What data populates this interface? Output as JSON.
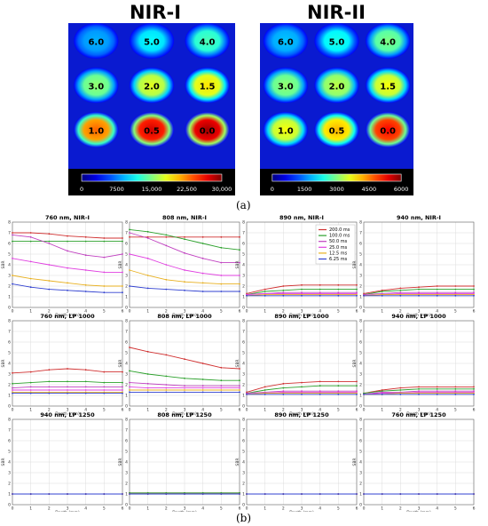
{
  "figure": {
    "caption_a": "(a)",
    "caption_b": "(b)"
  },
  "chart_data": [
    {
      "type": "heatmap",
      "title": "NIR-I",
      "cells": [
        [
          "6.0",
          "5.0",
          "4.0"
        ],
        [
          "3.0",
          "2.0",
          "1.5"
        ],
        [
          "1.0",
          "0.5",
          "0.0"
        ]
      ],
      "intensity": [
        [
          0.3,
          0.38,
          0.45
        ],
        [
          0.52,
          0.6,
          0.65
        ],
        [
          0.78,
          0.92,
          0.97
        ]
      ],
      "colorbar_ticks": [
        "0",
        "7500",
        "15,000",
        "22,500",
        "30,000"
      ],
      "colorbar_range": [
        0,
        30000
      ]
    },
    {
      "type": "heatmap",
      "title": "NIR-II",
      "cells": [
        [
          "6.0",
          "5.0",
          "4.0"
        ],
        [
          "3.0",
          "2.0",
          "1.5"
        ],
        [
          "1.0",
          "0.5",
          "0.0"
        ]
      ],
      "intensity": [
        [
          0.32,
          0.4,
          0.5
        ],
        [
          0.52,
          0.56,
          0.62
        ],
        [
          0.62,
          0.7,
          0.88
        ]
      ],
      "colorbar_ticks": [
        "0",
        "1500",
        "3000",
        "4500",
        "6000"
      ],
      "colorbar_range": [
        0,
        6000
      ]
    },
    {
      "type": "line",
      "legend": {
        "placement": "top-right",
        "entries": [
          "200.0 ms",
          "100.0 ms",
          "50.0 ms",
          "25.0 ms",
          "12.5 ms",
          "6.25 ms"
        ]
      },
      "series_colors": [
        "#d03030",
        "#2ca02c",
        "#c040c0",
        "#e040e0",
        "#e8b020",
        "#3040d0"
      ],
      "xlabel": "Depth (mm)",
      "ylabel": "SBR",
      "xlim": [
        0,
        6
      ],
      "ylim": [
        0,
        8
      ],
      "xticks": [
        "0",
        "1",
        "2",
        "3",
        "4",
        "5",
        "6"
      ],
      "yticks": [
        "0",
        "1",
        "2",
        "3",
        "4",
        "5",
        "6",
        "7",
        "8"
      ],
      "grid": true,
      "x": [
        0,
        1,
        2,
        3,
        4,
        5,
        6
      ],
      "panels": [
        {
          "title": "760 nm, NIR-I",
          "series": [
            [
              7.0,
              7.0,
              6.9,
              6.7,
              6.6,
              6.5,
              6.5
            ],
            [
              6.2,
              6.2,
              6.2,
              6.2,
              6.2,
              6.2,
              6.2
            ],
            [
              6.8,
              6.6,
              6.0,
              5.3,
              4.9,
              4.7,
              5.0
            ],
            [
              4.6,
              4.3,
              4.0,
              3.7,
              3.5,
              3.3,
              3.3
            ],
            [
              3.0,
              2.7,
              2.5,
              2.3,
              2.1,
              2.0,
              2.0
            ],
            [
              2.2,
              1.9,
              1.7,
              1.6,
              1.5,
              1.4,
              1.4
            ]
          ]
        },
        {
          "title": "808 nm, NIR-I",
          "series": [
            [
              6.6,
              6.6,
              6.6,
              6.6,
              6.6,
              6.6,
              6.6
            ],
            [
              7.3,
              7.1,
              6.8,
              6.4,
              6.0,
              5.6,
              5.4
            ],
            [
              7.0,
              6.5,
              5.8,
              5.1,
              4.6,
              4.2,
              4.2
            ],
            [
              5.0,
              4.6,
              4.0,
              3.5,
              3.2,
              3.0,
              3.0
            ],
            [
              3.5,
              3.0,
              2.6,
              2.4,
              2.3,
              2.2,
              2.2
            ],
            [
              2.0,
              1.8,
              1.7,
              1.6,
              1.5,
              1.5,
              1.5
            ]
          ]
        },
        {
          "title": "890 nm, NIR-I",
          "series": [
            [
              1.3,
              1.7,
              2.0,
              2.1,
              2.1,
              2.1,
              2.1
            ],
            [
              1.2,
              1.5,
              1.6,
              1.7,
              1.7,
              1.7,
              1.7
            ],
            [
              1.2,
              1.3,
              1.4,
              1.4,
              1.4,
              1.4,
              1.4
            ],
            [
              1.2,
              1.3,
              1.3,
              1.3,
              1.3,
              1.3,
              1.3
            ],
            [
              1.1,
              1.2,
              1.2,
              1.2,
              1.2,
              1.2,
              1.2
            ],
            [
              1.1,
              1.1,
              1.1,
              1.1,
              1.1,
              1.1,
              1.1
            ]
          ]
        },
        {
          "title": "940 nm, NIR-I",
          "series": [
            [
              1.3,
              1.6,
              1.8,
              1.9,
              2.0,
              2.0,
              2.0
            ],
            [
              1.2,
              1.5,
              1.6,
              1.7,
              1.7,
              1.7,
              1.7
            ],
            [
              1.2,
              1.3,
              1.4,
              1.4,
              1.4,
              1.4,
              1.4
            ],
            [
              1.1,
              1.2,
              1.3,
              1.3,
              1.3,
              1.3,
              1.3
            ],
            [
              1.1,
              1.2,
              1.2,
              1.2,
              1.2,
              1.2,
              1.2
            ],
            [
              1.1,
              1.1,
              1.1,
              1.1,
              1.1,
              1.1,
              1.1
            ]
          ]
        },
        {
          "title": "760 nm, LP 1000",
          "series": [
            [
              3.1,
              3.2,
              3.4,
              3.5,
              3.4,
              3.2,
              3.2
            ],
            [
              2.1,
              2.2,
              2.3,
              2.3,
              2.3,
              2.2,
              2.2
            ],
            [
              1.7,
              1.8,
              1.8,
              1.8,
              1.8,
              1.8,
              1.8
            ],
            [
              1.5,
              1.5,
              1.5,
              1.5,
              1.5,
              1.5,
              1.5
            ],
            [
              1.3,
              1.3,
              1.3,
              1.3,
              1.3,
              1.3,
              1.3
            ],
            [
              1.2,
              1.2,
              1.2,
              1.2,
              1.2,
              1.2,
              1.2
            ]
          ]
        },
        {
          "title": "808 nm, LP 1000",
          "series": [
            [
              5.5,
              5.1,
              4.8,
              4.4,
              4.0,
              3.6,
              3.5
            ],
            [
              3.3,
              3.0,
              2.8,
              2.6,
              2.5,
              2.4,
              2.4
            ],
            [
              2.2,
              2.1,
              2.0,
              1.9,
              1.9,
              1.9,
              1.9
            ],
            [
              1.8,
              1.7,
              1.7,
              1.7,
              1.7,
              1.7,
              1.7
            ],
            [
              1.5,
              1.5,
              1.5,
              1.5,
              1.5,
              1.5,
              1.5
            ],
            [
              1.3,
              1.3,
              1.3,
              1.3,
              1.3,
              1.3,
              1.3
            ]
          ]
        },
        {
          "title": "890 nm, LP 1000",
          "series": [
            [
              1.3,
              1.8,
              2.1,
              2.2,
              2.3,
              2.3,
              2.3
            ],
            [
              1.2,
              1.5,
              1.7,
              1.8,
              1.9,
              1.9,
              1.9
            ],
            [
              1.2,
              1.3,
              1.4,
              1.4,
              1.4,
              1.4,
              1.4
            ],
            [
              1.1,
              1.2,
              1.3,
              1.3,
              1.3,
              1.3,
              1.3
            ],
            [
              1.1,
              1.2,
              1.2,
              1.2,
              1.2,
              1.2,
              1.2
            ],
            [
              1.1,
              1.1,
              1.1,
              1.1,
              1.1,
              1.1,
              1.1
            ]
          ]
        },
        {
          "title": "940 nm, LP 1000",
          "series": [
            [
              1.2,
              1.5,
              1.7,
              1.8,
              1.8,
              1.8,
              1.8
            ],
            [
              1.2,
              1.4,
              1.5,
              1.6,
              1.6,
              1.6,
              1.6
            ],
            [
              1.1,
              1.3,
              1.3,
              1.4,
              1.4,
              1.4,
              1.4
            ],
            [
              1.1,
              1.2,
              1.2,
              1.3,
              1.3,
              1.3,
              1.3
            ],
            [
              1.1,
              1.1,
              1.2,
              1.2,
              1.2,
              1.2,
              1.2
            ],
            [
              1.1,
              1.1,
              1.1,
              1.1,
              1.1,
              1.1,
              1.1
            ]
          ]
        },
        {
          "title": "940 nm, LP 1250",
          "series": [
            [
              1.0,
              1.0,
              1.0,
              1.0,
              1.0,
              1.0,
              1.0
            ],
            [
              1.0,
              1.0,
              1.0,
              1.0,
              1.0,
              1.0,
              1.0
            ],
            [
              1.0,
              1.0,
              1.0,
              1.0,
              1.0,
              1.0,
              1.0
            ],
            [
              1.0,
              1.0,
              1.0,
              1.0,
              1.0,
              1.0,
              1.0
            ],
            [
              1.0,
              1.0,
              1.0,
              1.0,
              1.0,
              1.0,
              1.0
            ],
            [
              1.0,
              1.0,
              1.0,
              1.0,
              1.0,
              1.0,
              1.0
            ]
          ]
        },
        {
          "title": "808 nm, LP 1250",
          "series": [
            [
              1.1,
              1.1,
              1.1,
              1.1,
              1.1,
              1.1,
              1.1
            ],
            [
              1.1,
              1.1,
              1.1,
              1.1,
              1.1,
              1.1,
              1.1
            ],
            [
              1.0,
              1.0,
              1.0,
              1.0,
              1.0,
              1.0,
              1.0
            ],
            [
              1.0,
              1.0,
              1.0,
              1.0,
              1.0,
              1.0,
              1.0
            ],
            [
              1.0,
              1.0,
              1.0,
              1.0,
              1.0,
              1.0,
              1.0
            ],
            [
              1.0,
              1.0,
              1.0,
              1.0,
              1.0,
              1.0,
              1.0
            ]
          ]
        },
        {
          "title": "890 nm, LP 1250",
          "series": [
            [
              1.0,
              1.0,
              1.0,
              1.0,
              1.0,
              1.0,
              1.0
            ],
            [
              1.0,
              1.0,
              1.0,
              1.0,
              1.0,
              1.0,
              1.0
            ],
            [
              1.0,
              1.0,
              1.0,
              1.0,
              1.0,
              1.0,
              1.0
            ],
            [
              1.0,
              1.0,
              1.0,
              1.0,
              1.0,
              1.0,
              1.0
            ],
            [
              1.0,
              1.0,
              1.0,
              1.0,
              1.0,
              1.0,
              1.0
            ],
            [
              1.0,
              1.0,
              1.0,
              1.0,
              1.0,
              1.0,
              1.0
            ]
          ]
        },
        {
          "title": "760 nm, LP 1250",
          "series": [
            [
              1.0,
              1.0,
              1.0,
              1.0,
              1.0,
              1.0,
              1.0
            ],
            [
              1.0,
              1.0,
              1.0,
              1.0,
              1.0,
              1.0,
              1.0
            ],
            [
              1.0,
              1.0,
              1.0,
              1.0,
              1.0,
              1.0,
              1.0
            ],
            [
              1.0,
              1.0,
              1.0,
              1.0,
              1.0,
              1.0,
              1.0
            ],
            [
              1.0,
              1.0,
              1.0,
              1.0,
              1.0,
              1.0,
              1.0
            ],
            [
              1.0,
              1.0,
              1.0,
              1.0,
              1.0,
              1.0,
              1.0
            ]
          ]
        }
      ]
    }
  ]
}
